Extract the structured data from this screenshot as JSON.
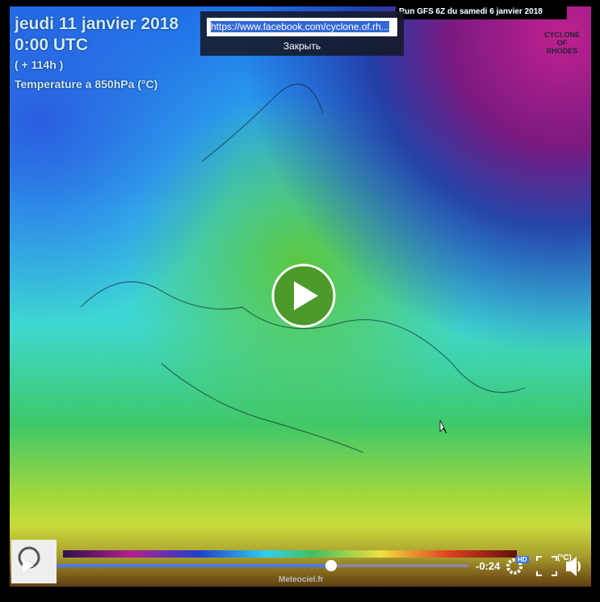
{
  "video": {
    "overlay": {
      "date": "jeudi 11 janvier 2018",
      "time": "0:00 UTC",
      "offset": "( + 114h )",
      "field": "Temperature a 850hPa (°C)",
      "run": "Run GFS 6Z du samedi 6 janvier 2018",
      "brand": [
        "CYCLONE",
        "OF",
        "RHODES"
      ],
      "source": "Meteociel.fr",
      "unit": "(°C)"
    },
    "popup": {
      "url": "https://www.facebook.com/cyclone.of.rh...",
      "close": "Закрыть"
    },
    "controls": {
      "time_remaining": "-0:24",
      "quality": "HD"
    }
  }
}
